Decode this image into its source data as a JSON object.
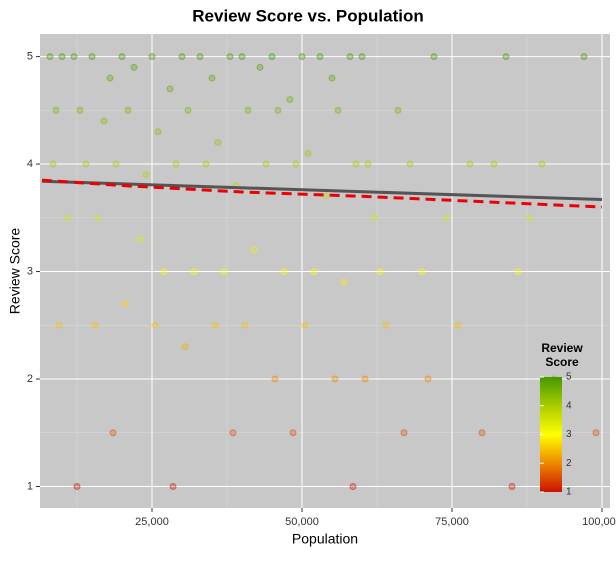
{
  "chart_data": {
    "type": "scatter",
    "title": "Review Score vs. Population",
    "x_label": "Population",
    "y_label": "Review Score",
    "x": [
      8000,
      10000,
      12000,
      15000,
      18000,
      20000,
      22000,
      25000,
      28000,
      30000,
      33000,
      35000,
      38000,
      40000,
      43000,
      45000,
      48000,
      50000,
      53000,
      55000,
      58000,
      60000,
      9000,
      13000,
      17000,
      21000,
      26000,
      31000,
      36000,
      41000,
      46000,
      51000,
      56000,
      61000,
      66000,
      72000,
      78000,
      84000,
      90000,
      97000,
      8500,
      14000,
      19000,
      24000,
      29000,
      34000,
      39000,
      44000,
      49000,
      54000,
      59000,
      62000,
      68000,
      74000,
      82000,
      88000,
      11000,
      16000,
      23000,
      27000,
      32000,
      37000,
      42000,
      47000,
      52000,
      57000,
      63000,
      70000,
      76000,
      86000,
      9500,
      15500,
      20500,
      25500,
      30500,
      35500,
      40500,
      45500,
      50500,
      55500,
      60500,
      64000,
      71000,
      80000,
      92000,
      99000,
      12500,
      18500,
      28500,
      38500,
      48500,
      58500,
      67000,
      85000
    ],
    "values": [
      5,
      5,
      5,
      5,
      4.8,
      5,
      4.9,
      5,
      4.7,
      5,
      5,
      4.8,
      5,
      5,
      4.9,
      5,
      4.6,
      5,
      5,
      4.8,
      5,
      5,
      4.5,
      4.5,
      4.4,
      4.5,
      4.3,
      4.5,
      4.2,
      4.5,
      4.5,
      4.1,
      4.5,
      4,
      4.5,
      5,
      4,
      5,
      4,
      5,
      4,
      4,
      4,
      3.9,
      4,
      4,
      3.8,
      4,
      4,
      3.7,
      4,
      3.5,
      4,
      3.5,
      4,
      3.5,
      3.5,
      3.5,
      3.3,
      3,
      3,
      3,
      3.2,
      3,
      3,
      2.9,
      3,
      3,
      2.5,
      3,
      2.5,
      2.5,
      2.7,
      2.5,
      2.3,
      2.5,
      2.5,
      2,
      2.5,
      2,
      2,
      2.5,
      2,
      1.5,
      2,
      1.5,
      1,
      1.5,
      1,
      1.5,
      1.5,
      1,
      1.5,
      1
    ],
    "xlim": [
      6333,
      101333
    ],
    "ylim": [
      0.8,
      5.21
    ],
    "xticks": [
      {
        "value": 25000,
        "label": "25,000"
      },
      {
        "value": 50000,
        "label": "50,000"
      },
      {
        "value": 75000,
        "label": "75,000"
      },
      {
        "value": 100000,
        "label": "100,000"
      }
    ],
    "yticks": [
      1,
      2,
      3,
      4,
      5
    ],
    "xminor": [
      12500,
      37500,
      62500,
      87500
    ],
    "yminor": [
      1.5,
      2.5,
      3.5,
      4.5
    ],
    "point_alpha": 0.3,
    "lines": [
      {
        "color": "#555555",
        "dash": false,
        "x": [
          6667,
          100000
        ],
        "values": [
          3.84,
          3.67
        ]
      },
      {
        "color": "#ee0000",
        "dash": true,
        "x": [
          6667,
          20000,
          40000,
          60000,
          80000,
          100000
        ],
        "values": [
          3.85,
          3.8,
          3.74,
          3.7,
          3.65,
          3.6
        ]
      }
    ],
    "legend": {
      "title": "Review Score",
      "ticks": [
        1,
        2,
        3,
        4,
        5
      ],
      "color_stops": [
        {
          "value": 1,
          "color": "#cc1100"
        },
        {
          "value": 2,
          "color": "#ee8800"
        },
        {
          "value": 3,
          "color": "#ffff00"
        },
        {
          "value": 4,
          "color": "#aacc00"
        },
        {
          "value": 5,
          "color": "#449900"
        }
      ]
    }
  }
}
